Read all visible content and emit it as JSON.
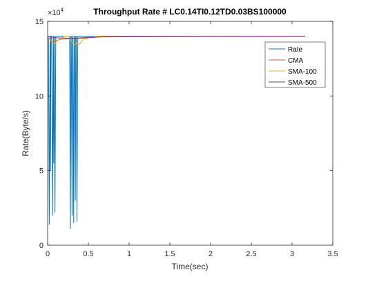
{
  "chart_data": {
    "type": "line",
    "title": "Throughput Rate # LC0.14TI0.12TD0.03BS100000",
    "xlabel": "Time(sec)",
    "ylabel": "Rate(Byte/s)",
    "y_exponent_label": "×10",
    "y_exponent_power": "4",
    "xlim": [
      0,
      3.5
    ],
    "ylim": [
      0,
      150000
    ],
    "x_ticks": [
      0,
      0.5,
      1,
      1.5,
      2,
      2.5,
      3,
      3.5
    ],
    "x_tick_labels": [
      "0",
      "0.5",
      "1",
      "1.5",
      "2",
      "2.5",
      "3",
      "3.5"
    ],
    "y_ticks": [
      0,
      50000,
      100000,
      150000
    ],
    "y_tick_labels": [
      "0",
      "5",
      "10",
      "15"
    ],
    "grid": false,
    "legend_position": "top-right",
    "series": [
      {
        "name": "Rate",
        "color": "#0072BD",
        "x": [
          0,
          0.01,
          0.02,
          0.03,
          0.035,
          0.04,
          0.05,
          0.06,
          0.07,
          0.075,
          0.08,
          0.09,
          0.1,
          0.105,
          0.11,
          0.12,
          0.14,
          0.27,
          0.28,
          0.285,
          0.29,
          0.3,
          0.305,
          0.31,
          0.32,
          0.325,
          0.33,
          0.34,
          0.345,
          0.35,
          0.36,
          0.37,
          0.375,
          0.38,
          0.4,
          0.5,
          0.6,
          3.16
        ],
        "y": [
          140000,
          140000,
          14000,
          140000,
          50000,
          140000,
          140000,
          20000,
          140000,
          55000,
          140000,
          22000,
          140000,
          140000,
          140000,
          140000,
          140000,
          140000,
          11000,
          140000,
          140000,
          20000,
          140000,
          140000,
          15000,
          140000,
          140000,
          30000,
          140000,
          140000,
          16000,
          140000,
          140000,
          140000,
          140000,
          140000,
          140000,
          140000
        ]
      },
      {
        "name": "CMA",
        "color": "#D95319",
        "x": [
          0,
          0.02,
          0.05,
          0.1,
          0.15,
          0.2,
          0.3,
          0.4,
          0.5,
          0.6,
          1.0,
          2.0,
          3.16
        ],
        "y": [
          140000,
          138500,
          135500,
          137000,
          137800,
          138300,
          138600,
          139000,
          139300,
          139500,
          139700,
          139900,
          140000
        ]
      },
      {
        "name": "SMA-100",
        "color": "#EDB120",
        "x": [
          0,
          0.04,
          0.07,
          0.1,
          0.14,
          0.2,
          0.27,
          0.3,
          0.33,
          0.36,
          0.39,
          0.42,
          0.45,
          0.48,
          0.5,
          0.55,
          0.6,
          0.7,
          3.16
        ],
        "y": [
          140000,
          137000,
          135000,
          136000,
          138000,
          140000,
          140000,
          136000,
          134000,
          136000,
          134500,
          137000,
          138000,
          138500,
          139000,
          139500,
          140000,
          140000,
          140000
        ]
      },
      {
        "name": "SMA-500",
        "color": "#7E2F8E",
        "x": [
          0,
          0.05,
          0.1,
          0.2,
          0.3,
          0.4,
          0.5,
          0.6,
          0.7,
          1.0,
          2.0,
          3.16
        ],
        "y": [
          140000,
          139500,
          139000,
          138800,
          138500,
          138700,
          139000,
          139400,
          139800,
          140000,
          140000,
          140000
        ]
      }
    ]
  }
}
